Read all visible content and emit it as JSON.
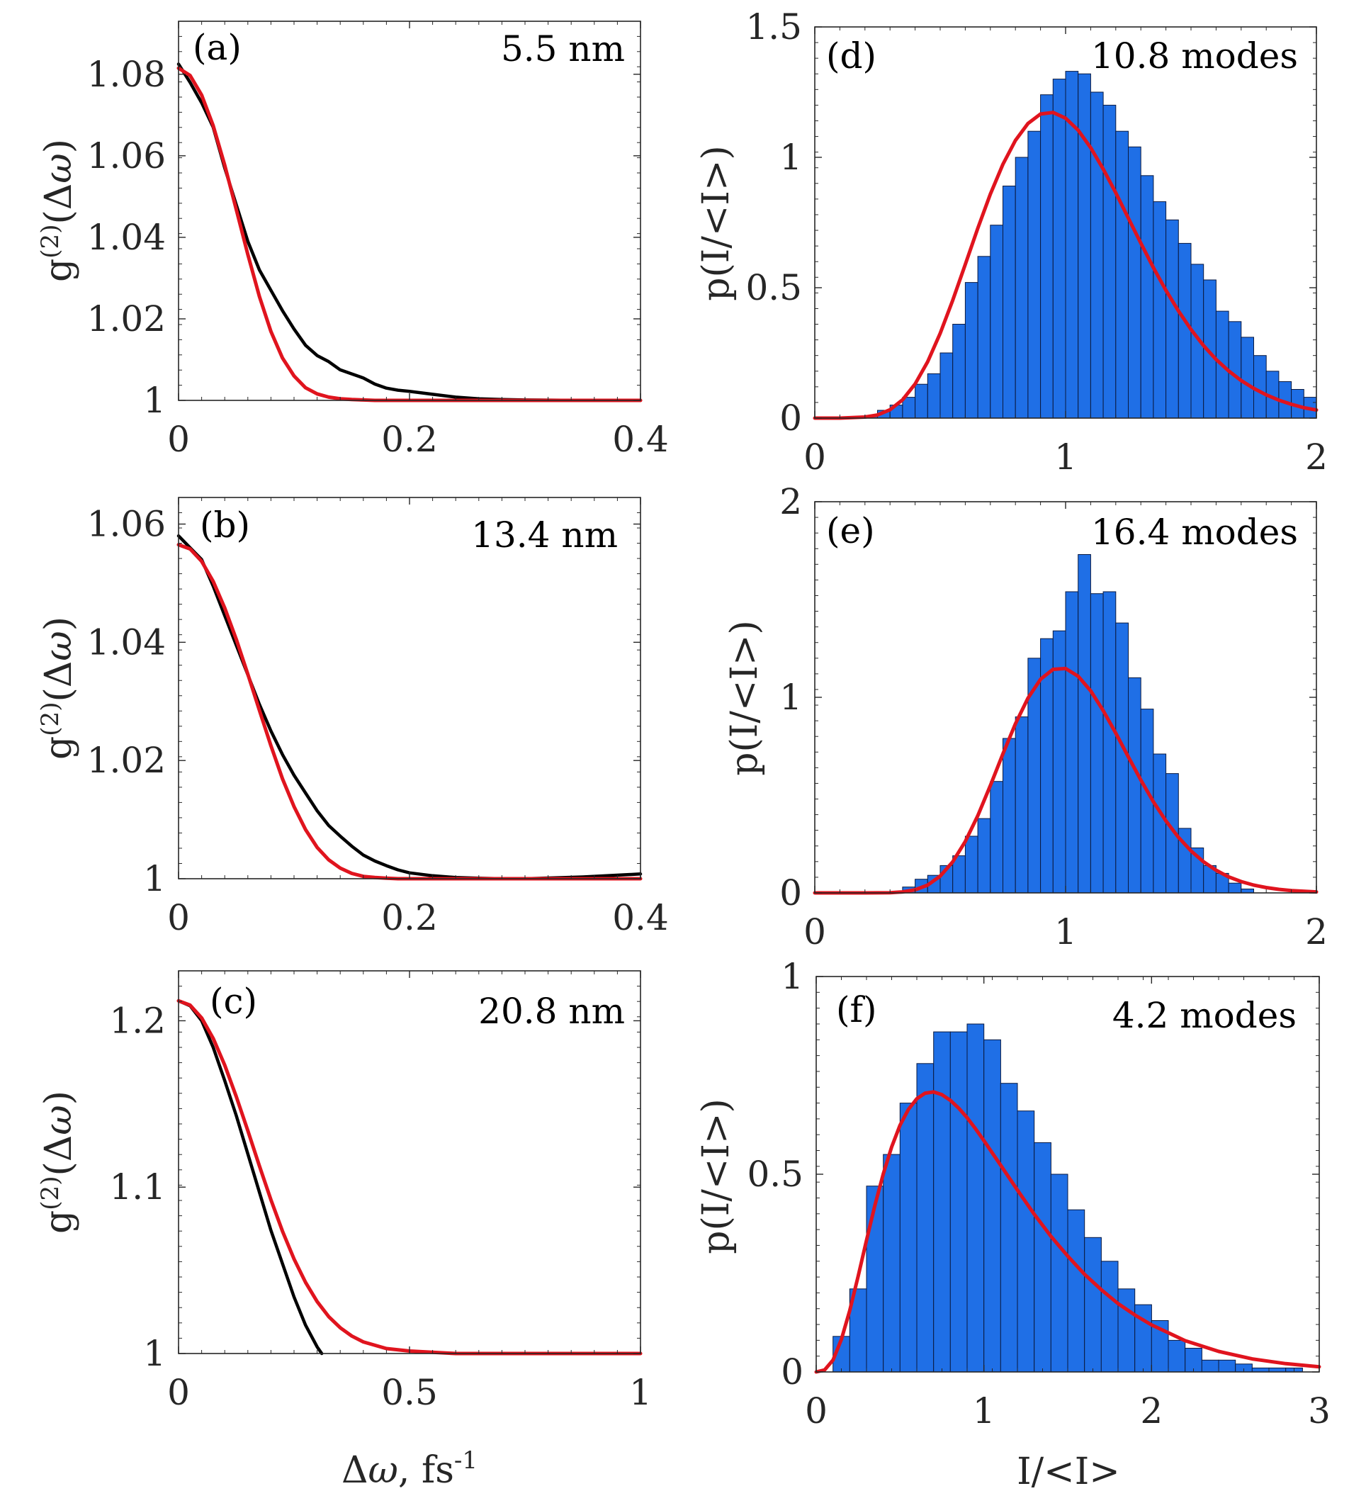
{
  "colors": {
    "fit": "#e0141e",
    "data": "#000000",
    "bar": "#1f6fe6",
    "axis": "#262626"
  },
  "chart_data": [
    {
      "panel": "(a)",
      "type": "line",
      "annotation": "5.5 nm",
      "xlabel": "",
      "ylabel": "g(2)(Δω)",
      "xlim": [
        0,
        0.4
      ],
      "ylim": [
        1,
        1.093
      ],
      "xticks": [
        "0",
        "0.2",
        "0.4"
      ],
      "xtick_values": [
        0,
        0.2,
        0.4
      ],
      "yticks": [
        "1",
        "1.02",
        "1.04",
        "1.06",
        "1.08"
      ],
      "ytick_values": [
        1,
        1.02,
        1.04,
        1.06,
        1.08
      ],
      "series": [
        {
          "name": "data",
          "color": "#000000",
          "x": [
            0,
            0.01,
            0.02,
            0.03,
            0.04,
            0.05,
            0.06,
            0.07,
            0.08,
            0.09,
            0.1,
            0.11,
            0.12,
            0.13,
            0.14,
            0.15,
            0.16,
            0.17,
            0.18,
            0.19,
            0.2,
            0.22,
            0.24,
            0.26,
            0.28,
            0.3,
            0.35,
            0.4
          ],
          "y": [
            1.0825,
            1.078,
            1.073,
            1.067,
            1.057,
            1.048,
            1.039,
            1.032,
            1.027,
            1.022,
            1.0175,
            1.0135,
            1.011,
            1.0095,
            1.0075,
            1.0065,
            1.0055,
            1.004,
            1.003,
            1.0025,
            1.0022,
            1.0015,
            1.0008,
            1.0004,
            1.0002,
            1.0001,
            1.0,
            1.0
          ]
        },
        {
          "name": "fit",
          "color": "#e0141e",
          "x": [
            0,
            0.01,
            0.02,
            0.03,
            0.04,
            0.05,
            0.06,
            0.07,
            0.08,
            0.09,
            0.1,
            0.11,
            0.12,
            0.13,
            0.14,
            0.15,
            0.16,
            0.17,
            0.18,
            0.19,
            0.2,
            0.22,
            0.24,
            0.26,
            0.28,
            0.3,
            0.35,
            0.4
          ],
          "y": [
            1.0815,
            1.0797,
            1.0749,
            1.0674,
            1.0577,
            1.0468,
            1.0358,
            1.0255,
            1.0169,
            1.0104,
            1.006,
            1.0031,
            1.0016,
            1.0008,
            1.0004,
            1.0002,
            1.0001,
            1.0,
            1.0,
            1.0,
            1.0,
            1.0,
            1.0,
            1.0,
            1.0,
            1.0,
            1.0,
            1.0
          ]
        }
      ]
    },
    {
      "panel": "(b)",
      "type": "line",
      "annotation": "13.4 nm",
      "xlabel": "",
      "ylabel": "g(2)(Δω)",
      "xlim": [
        0,
        0.4
      ],
      "ylim": [
        1,
        1.0645
      ],
      "xticks": [
        "0",
        "0.2",
        "0.4"
      ],
      "xtick_values": [
        0,
        0.2,
        0.4
      ],
      "yticks": [
        "1",
        "1.02",
        "1.04",
        "1.06"
      ],
      "ytick_values": [
        1,
        1.02,
        1.04,
        1.06
      ],
      "series": [
        {
          "name": "data",
          "color": "#000000",
          "x": [
            0,
            0.01,
            0.02,
            0.03,
            0.04,
            0.05,
            0.06,
            0.07,
            0.08,
            0.09,
            0.1,
            0.11,
            0.12,
            0.13,
            0.14,
            0.15,
            0.16,
            0.17,
            0.18,
            0.19,
            0.2,
            0.22,
            0.24,
            0.26,
            0.28,
            0.3,
            0.35,
            0.4
          ],
          "y": [
            1.058,
            1.056,
            1.054,
            1.0495,
            1.0445,
            1.0395,
            1.0345,
            1.0295,
            1.025,
            1.021,
            1.0175,
            1.0145,
            1.0115,
            1.009,
            1.0072,
            1.0055,
            1.004,
            1.003,
            1.0022,
            1.0015,
            1.001,
            1.0005,
            1.0002,
            1.0001,
            1.0,
            1.0,
            1.0003,
            1.0008
          ]
        },
        {
          "name": "fit",
          "color": "#e0141e",
          "x": [
            0,
            0.01,
            0.02,
            0.03,
            0.04,
            0.05,
            0.06,
            0.07,
            0.08,
            0.09,
            0.1,
            0.11,
            0.12,
            0.13,
            0.14,
            0.15,
            0.16,
            0.17,
            0.18,
            0.19,
            0.2,
            0.22,
            0.24,
            0.26,
            0.28,
            0.3,
            0.35,
            0.4
          ],
          "y": [
            1.0565,
            1.0558,
            1.0537,
            1.0503,
            1.0458,
            1.0405,
            1.0346,
            1.0285,
            1.0225,
            1.0169,
            1.0122,
            1.0083,
            1.0053,
            1.0032,
            1.0018,
            1.0009,
            1.0004,
            1.0002,
            1.0001,
            1.0,
            1.0,
            1.0,
            1.0,
            1.0,
            1.0,
            1.0,
            1.0,
            1.0
          ]
        }
      ]
    },
    {
      "panel": "(c)",
      "type": "line",
      "annotation": "20.8 nm",
      "xlabel": "Δω, fs-1",
      "ylabel": "g(2)(Δω)",
      "xlim": [
        0,
        1
      ],
      "ylim": [
        1,
        1.23
      ],
      "xticks": [
        "0",
        "0.5",
        "1"
      ],
      "xtick_values": [
        0,
        0.5,
        1
      ],
      "yticks": [
        "1",
        "1.1",
        "1.2"
      ],
      "ytick_values": [
        1,
        1.1,
        1.2
      ],
      "series": [
        {
          "name": "data",
          "color": "#000000",
          "x": [
            0,
            0.025,
            0.05,
            0.075,
            0.1,
            0.125,
            0.15,
            0.175,
            0.2,
            0.225,
            0.25,
            0.275,
            0.3,
            0.31
          ],
          "y": [
            1.212,
            1.209,
            1.2,
            1.184,
            1.164,
            1.143,
            1.12,
            1.097,
            1.074,
            1.054,
            1.034,
            1.017,
            1.004,
            1.0
          ]
        },
        {
          "name": "fit",
          "color": "#e0141e",
          "x": [
            0,
            0.025,
            0.05,
            0.075,
            0.1,
            0.125,
            0.15,
            0.175,
            0.2,
            0.225,
            0.25,
            0.275,
            0.3,
            0.325,
            0.35,
            0.375,
            0.4,
            0.45,
            0.5,
            0.6,
            0.7,
            0.8,
            0.9,
            1.0
          ],
          "y": [
            1.212,
            1.2094,
            1.2017,
            1.1894,
            1.1733,
            1.1544,
            1.1339,
            1.1128,
            1.0924,
            1.0735,
            1.0568,
            1.0427,
            1.0312,
            1.0222,
            1.0155,
            1.0105,
            1.007,
            1.003,
            1.0015,
            1.0,
            1.0,
            1.0,
            1.0,
            1.0
          ]
        }
      ]
    },
    {
      "panel": "(d)",
      "type": "bar",
      "annotation": "10.8 modes",
      "xlabel": "",
      "ylabel": "p(I/<I>)",
      "xlim": [
        0,
        2
      ],
      "ylim": [
        0,
        1.5
      ],
      "xticks": [
        "0",
        "1",
        "2"
      ],
      "xtick_values": [
        0,
        1,
        2
      ],
      "yticks": [
        "0",
        "0.5",
        "1",
        "1.5"
      ],
      "ytick_values": [
        0,
        0.5,
        1,
        1.5
      ],
      "bin_width": 0.05,
      "bin_centers": [
        0.225,
        0.275,
        0.325,
        0.375,
        0.425,
        0.475,
        0.525,
        0.575,
        0.625,
        0.675,
        0.725,
        0.775,
        0.825,
        0.875,
        0.925,
        0.975,
        1.025,
        1.075,
        1.125,
        1.175,
        1.225,
        1.275,
        1.325,
        1.375,
        1.425,
        1.475,
        1.525,
        1.575,
        1.625,
        1.675,
        1.725,
        1.775,
        1.825,
        1.875,
        1.925,
        1.975
      ],
      "values": [
        0.01,
        0.03,
        0.05,
        0.08,
        0.13,
        0.17,
        0.25,
        0.36,
        0.52,
        0.62,
        0.74,
        0.89,
        1.0,
        1.1,
        1.24,
        1.3,
        1.33,
        1.32,
        1.25,
        1.2,
        1.1,
        1.04,
        0.93,
        0.83,
        0.76,
        0.67,
        0.59,
        0.53,
        0.41,
        0.37,
        0.31,
        0.24,
        0.18,
        0.14,
        0.11,
        0.08
      ],
      "fit": {
        "name": "fit",
        "color": "#e0141e",
        "x": [
          0,
          0.1,
          0.2,
          0.25,
          0.3,
          0.35,
          0.4,
          0.45,
          0.5,
          0.55,
          0.6,
          0.65,
          0.7,
          0.75,
          0.8,
          0.85,
          0.9,
          0.95,
          1.0,
          1.05,
          1.1,
          1.15,
          1.2,
          1.25,
          1.3,
          1.35,
          1.4,
          1.45,
          1.5,
          1.55,
          1.6,
          1.65,
          1.7,
          1.75,
          1.8,
          1.85,
          1.9,
          1.95,
          2.0
        ],
        "y": [
          0,
          0,
          0.004,
          0.012,
          0.032,
          0.07,
          0.131,
          0.216,
          0.325,
          0.452,
          0.589,
          0.728,
          0.859,
          0.973,
          1.065,
          1.13,
          1.166,
          1.172,
          1.15,
          1.104,
          1.037,
          0.955,
          0.864,
          0.767,
          0.671,
          0.577,
          0.49,
          0.411,
          0.34,
          0.278,
          0.225,
          0.181,
          0.144,
          0.114,
          0.089,
          0.069,
          0.053,
          0.04,
          0.031
        ]
      }
    },
    {
      "panel": "(e)",
      "type": "bar",
      "annotation": "16.4 modes",
      "xlabel": "",
      "ylabel": "p(I/<I>)",
      "xlim": [
        0,
        2
      ],
      "ylim": [
        0,
        2
      ],
      "xticks": [
        "0",
        "1",
        "2"
      ],
      "xtick_values": [
        0,
        1,
        2
      ],
      "yticks": [
        "0",
        "1",
        "2"
      ],
      "ytick_values": [
        0,
        1,
        2
      ],
      "bin_width": 0.05,
      "bin_centers": [
        0.375,
        0.425,
        0.475,
        0.525,
        0.575,
        0.625,
        0.675,
        0.725,
        0.775,
        0.825,
        0.875,
        0.925,
        0.975,
        1.025,
        1.075,
        1.125,
        1.175,
        1.225,
        1.275,
        1.325,
        1.375,
        1.425,
        1.475,
        1.525,
        1.575,
        1.625,
        1.675,
        1.725
      ],
      "values": [
        0.03,
        0.07,
        0.09,
        0.14,
        0.19,
        0.29,
        0.38,
        0.57,
        0.79,
        0.9,
        1.2,
        1.3,
        1.34,
        1.54,
        1.73,
        1.53,
        1.54,
        1.38,
        1.1,
        0.94,
        0.71,
        0.61,
        0.33,
        0.23,
        0.14,
        0.1,
        0.05,
        0.02
      ],
      "fit": {
        "name": "fit",
        "color": "#e0141e",
        "x": [
          0,
          0.2,
          0.3,
          0.35,
          0.4,
          0.45,
          0.5,
          0.55,
          0.6,
          0.65,
          0.7,
          0.75,
          0.8,
          0.85,
          0.9,
          0.95,
          1.0,
          1.05,
          1.1,
          1.15,
          1.2,
          1.25,
          1.3,
          1.35,
          1.4,
          1.45,
          1.5,
          1.55,
          1.6,
          1.65,
          1.7,
          1.75,
          1.8,
          1.85,
          1.9,
          2.0
        ],
        "y": [
          0,
          0,
          0.001,
          0.005,
          0.016,
          0.04,
          0.086,
          0.159,
          0.263,
          0.395,
          0.549,
          0.711,
          0.865,
          0.996,
          1.092,
          1.143,
          1.147,
          1.108,
          1.033,
          0.932,
          0.817,
          0.696,
          0.577,
          0.466,
          0.368,
          0.284,
          0.215,
          0.159,
          0.116,
          0.082,
          0.058,
          0.04,
          0.027,
          0.018,
          0.012,
          0.005
        ]
      }
    },
    {
      "panel": "(f)",
      "type": "bar",
      "annotation": "4.2 modes",
      "xlabel": "I/<I>",
      "ylabel": "p(I/<I>)",
      "xlim": [
        0,
        3
      ],
      "ylim": [
        0,
        1
      ],
      "xticks": [
        "0",
        "1",
        "2",
        "3"
      ],
      "xtick_values": [
        0,
        1,
        2,
        3
      ],
      "yticks": [
        "0",
        "0.5",
        "1"
      ],
      "ytick_values": [
        0,
        0.5,
        1
      ],
      "bin_width": 0.1,
      "bin_centers": [
        0.15,
        0.25,
        0.35,
        0.45,
        0.55,
        0.65,
        0.75,
        0.85,
        0.95,
        1.05,
        1.15,
        1.25,
        1.35,
        1.45,
        1.55,
        1.65,
        1.75,
        1.85,
        1.95,
        2.05,
        2.15,
        2.25,
        2.35,
        2.45,
        2.55,
        2.65,
        2.75,
        2.85
      ],
      "values": [
        0.09,
        0.21,
        0.47,
        0.55,
        0.68,
        0.78,
        0.86,
        0.86,
        0.88,
        0.84,
        0.73,
        0.66,
        0.58,
        0.5,
        0.41,
        0.34,
        0.28,
        0.21,
        0.17,
        0.13,
        0.08,
        0.06,
        0.03,
        0.03,
        0.02,
        0.01,
        0.01,
        0.01
      ],
      "fit": {
        "name": "fit",
        "color": "#e0141e",
        "x": [
          0,
          0.05,
          0.1,
          0.15,
          0.2,
          0.25,
          0.3,
          0.35,
          0.4,
          0.45,
          0.5,
          0.55,
          0.6,
          0.65,
          0.7,
          0.75,
          0.8,
          0.85,
          0.9,
          0.95,
          1.0,
          1.1,
          1.2,
          1.3,
          1.4,
          1.5,
          1.6,
          1.7,
          1.8,
          1.9,
          2.0,
          2.2,
          2.4,
          2.6,
          2.8,
          3.0
        ],
        "y": [
          0,
          0.005,
          0.03,
          0.082,
          0.155,
          0.242,
          0.333,
          0.421,
          0.501,
          0.569,
          0.624,
          0.664,
          0.691,
          0.705,
          0.708,
          0.701,
          0.687,
          0.667,
          0.643,
          0.615,
          0.585,
          0.523,
          0.46,
          0.399,
          0.343,
          0.293,
          0.247,
          0.208,
          0.173,
          0.144,
          0.119,
          0.079,
          0.052,
          0.033,
          0.021,
          0.013
        ]
      }
    }
  ]
}
